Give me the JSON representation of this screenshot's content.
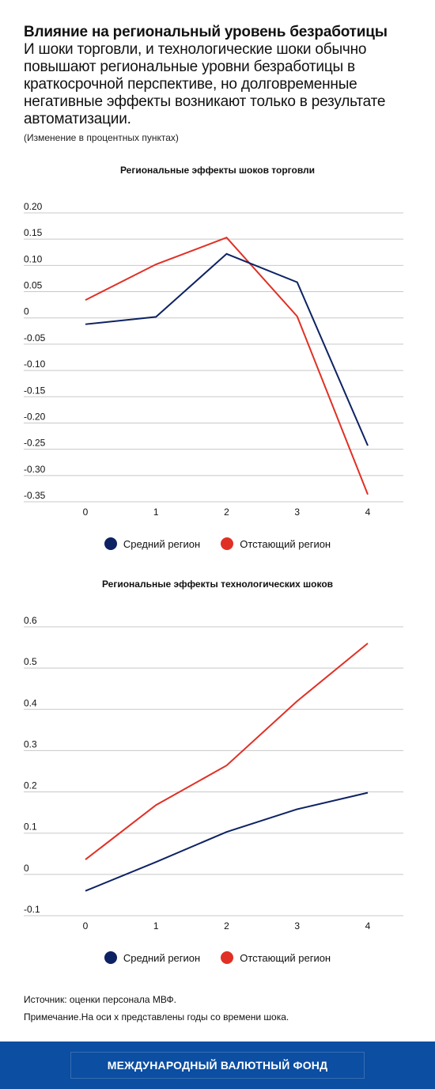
{
  "header": {
    "headline": "Влияние на региональный уровень безработицы",
    "subhead": "И шоки торговли, и технологические шоки обычно повышают региональные уровни безработицы в краткосрочной перспективе, но долговременные негативные эффекты возникают только в результате автоматизации.",
    "units": "(Изменение в процентных пунктах)"
  },
  "chart_data": [
    {
      "type": "line",
      "title": "Региональные эффекты шоков торговли",
      "x": [
        0,
        1,
        2,
        3,
        4
      ],
      "xlim": [
        -0.5,
        4.5
      ],
      "ylim": [
        -0.35,
        0.2
      ],
      "yticks": [
        0.2,
        0.15,
        0.1,
        0.05,
        0,
        -0.05,
        -0.1,
        -0.15,
        -0.2,
        -0.25,
        -0.3,
        -0.35
      ],
      "ytick_labels": [
        "0.20",
        "0.15",
        "0.10",
        "0.05",
        "0",
        "-0.05",
        "-0.10",
        "-0.15",
        "-0.20",
        "-0.25",
        "-0.30",
        "-0.35"
      ],
      "xtick_labels": [
        "0",
        "1",
        "2",
        "3",
        "4"
      ],
      "grid": "horizontal",
      "legend": "bottom-center",
      "series": [
        {
          "name": "Средний регион",
          "color": "#0d2263",
          "values": [
            -0.012,
            0.002,
            0.122,
            0.068,
            -0.243
          ]
        },
        {
          "name": "Отстающий регион",
          "color": "#e03025",
          "values": [
            0.034,
            0.102,
            0.153,
            0.003,
            -0.336
          ]
        }
      ]
    },
    {
      "type": "line",
      "title": "Региональные эффекты технологических шоков",
      "x": [
        0,
        1,
        2,
        3,
        4
      ],
      "xlim": [
        -0.5,
        4.5
      ],
      "ylim": [
        -0.1,
        0.6
      ],
      "yticks": [
        0.6,
        0.5,
        0.4,
        0.3,
        0.2,
        0.1,
        0,
        -0.1
      ],
      "ytick_labels": [
        "0.6",
        "0.5",
        "0.4",
        "0.3",
        "0.2",
        "0.1",
        "0",
        "-0.1"
      ],
      "xtick_labels": [
        "0",
        "1",
        "2",
        "3",
        "4"
      ],
      "grid": "horizontal",
      "legend": "bottom-center",
      "series": [
        {
          "name": "Средний регион",
          "color": "#0d2263",
          "values": [
            -0.04,
            0.03,
            0.103,
            0.158,
            0.198
          ]
        },
        {
          "name": "Отстающий регион",
          "color": "#e03025",
          "values": [
            0.036,
            0.168,
            0.264,
            0.42,
            0.56
          ]
        }
      ]
    }
  ],
  "notes": {
    "source": "Источник: оценки персонала МВФ.",
    "note": "Примечание.На оси x представлены годы со времени шока."
  },
  "footer": {
    "org": "МЕЖДУНАРОДНЫЙ ВАЛЮТНЫЙ ФОНД",
    "bg_color": "#0b4ea2"
  }
}
